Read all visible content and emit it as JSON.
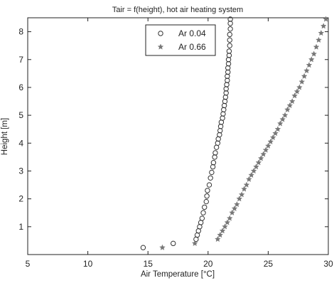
{
  "chart_data": {
    "type": "scatter",
    "title": "Tair = f(height), hot air heating system",
    "xlabel": "Air Temperature [°C]",
    "ylabel": "Height [m]",
    "xlim": [
      5,
      30
    ],
    "ylim": [
      0,
      8.5
    ],
    "xticks": [
      5,
      10,
      15,
      20,
      25,
      30
    ],
    "yticks": [
      1,
      2,
      3,
      4,
      5,
      6,
      7,
      8
    ],
    "grid": false,
    "legend_position": "top-center",
    "series": [
      {
        "name": "Ar 0.04",
        "marker": "circle-open",
        "color": "#333333",
        "points": [
          [
            14.6,
            0.25
          ],
          [
            17.1,
            0.4
          ],
          [
            19.0,
            0.55
          ],
          [
            19.1,
            0.7
          ],
          [
            19.2,
            0.85
          ],
          [
            19.3,
            1.0
          ],
          [
            19.4,
            1.15
          ],
          [
            19.5,
            1.3
          ],
          [
            19.6,
            1.5
          ],
          [
            19.7,
            1.7
          ],
          [
            19.85,
            1.9
          ],
          [
            19.9,
            2.1
          ],
          [
            19.95,
            2.3
          ],
          [
            20.1,
            2.5
          ],
          [
            20.2,
            2.75
          ],
          [
            20.3,
            2.95
          ],
          [
            20.4,
            3.15
          ],
          [
            20.45,
            3.3
          ],
          [
            20.55,
            3.5
          ],
          [
            20.6,
            3.65
          ],
          [
            20.7,
            3.85
          ],
          [
            20.8,
            4.0
          ],
          [
            20.85,
            4.15
          ],
          [
            20.95,
            4.3
          ],
          [
            21.0,
            4.45
          ],
          [
            21.05,
            4.6
          ],
          [
            21.1,
            4.75
          ],
          [
            21.2,
            4.9
          ],
          [
            21.25,
            5.05
          ],
          [
            21.3,
            5.2
          ],
          [
            21.35,
            5.35
          ],
          [
            21.4,
            5.5
          ],
          [
            21.45,
            5.65
          ],
          [
            21.5,
            5.8
          ],
          [
            21.5,
            5.95
          ],
          [
            21.55,
            6.1
          ],
          [
            21.6,
            6.25
          ],
          [
            21.6,
            6.4
          ],
          [
            21.65,
            6.55
          ],
          [
            21.65,
            6.7
          ],
          [
            21.7,
            6.85
          ],
          [
            21.7,
            7.0
          ],
          [
            21.75,
            7.15
          ],
          [
            21.75,
            7.3
          ],
          [
            21.8,
            7.5
          ],
          [
            21.8,
            7.7
          ],
          [
            21.8,
            7.9
          ],
          [
            21.85,
            8.1
          ],
          [
            21.85,
            8.3
          ],
          [
            21.85,
            8.45
          ]
        ]
      },
      {
        "name": "Ar 0.66",
        "marker": "star-filled",
        "color": "#777777",
        "points": [
          [
            16.2,
            0.25
          ],
          [
            18.9,
            0.4
          ],
          [
            20.8,
            0.55
          ],
          [
            21.0,
            0.7
          ],
          [
            21.2,
            0.85
          ],
          [
            21.4,
            1.0
          ],
          [
            21.6,
            1.15
          ],
          [
            21.8,
            1.3
          ],
          [
            22.0,
            1.5
          ],
          [
            22.2,
            1.65
          ],
          [
            22.4,
            1.8
          ],
          [
            22.6,
            2.0
          ],
          [
            22.8,
            2.15
          ],
          [
            23.0,
            2.35
          ],
          [
            23.2,
            2.5
          ],
          [
            23.4,
            2.7
          ],
          [
            23.6,
            2.85
          ],
          [
            23.8,
            3.0
          ],
          [
            24.0,
            3.15
          ],
          [
            24.2,
            3.3
          ],
          [
            24.4,
            3.45
          ],
          [
            24.6,
            3.6
          ],
          [
            24.8,
            3.75
          ],
          [
            25.0,
            3.9
          ],
          [
            25.2,
            4.05
          ],
          [
            25.4,
            4.2
          ],
          [
            25.6,
            4.35
          ],
          [
            25.8,
            4.5
          ],
          [
            26.0,
            4.7
          ],
          [
            26.2,
            4.85
          ],
          [
            26.4,
            5.0
          ],
          [
            26.6,
            5.2
          ],
          [
            26.8,
            5.35
          ],
          [
            27.0,
            5.5
          ],
          [
            27.2,
            5.7
          ],
          [
            27.4,
            5.85
          ],
          [
            27.6,
            6.0
          ],
          [
            27.8,
            6.2
          ],
          [
            28.0,
            6.4
          ],
          [
            28.2,
            6.6
          ],
          [
            28.4,
            6.8
          ],
          [
            28.6,
            7.0
          ],
          [
            28.8,
            7.2
          ],
          [
            29.0,
            7.45
          ],
          [
            29.2,
            7.7
          ],
          [
            29.4,
            7.95
          ],
          [
            29.6,
            8.2
          ],
          [
            29.8,
            8.45
          ]
        ]
      }
    ]
  }
}
